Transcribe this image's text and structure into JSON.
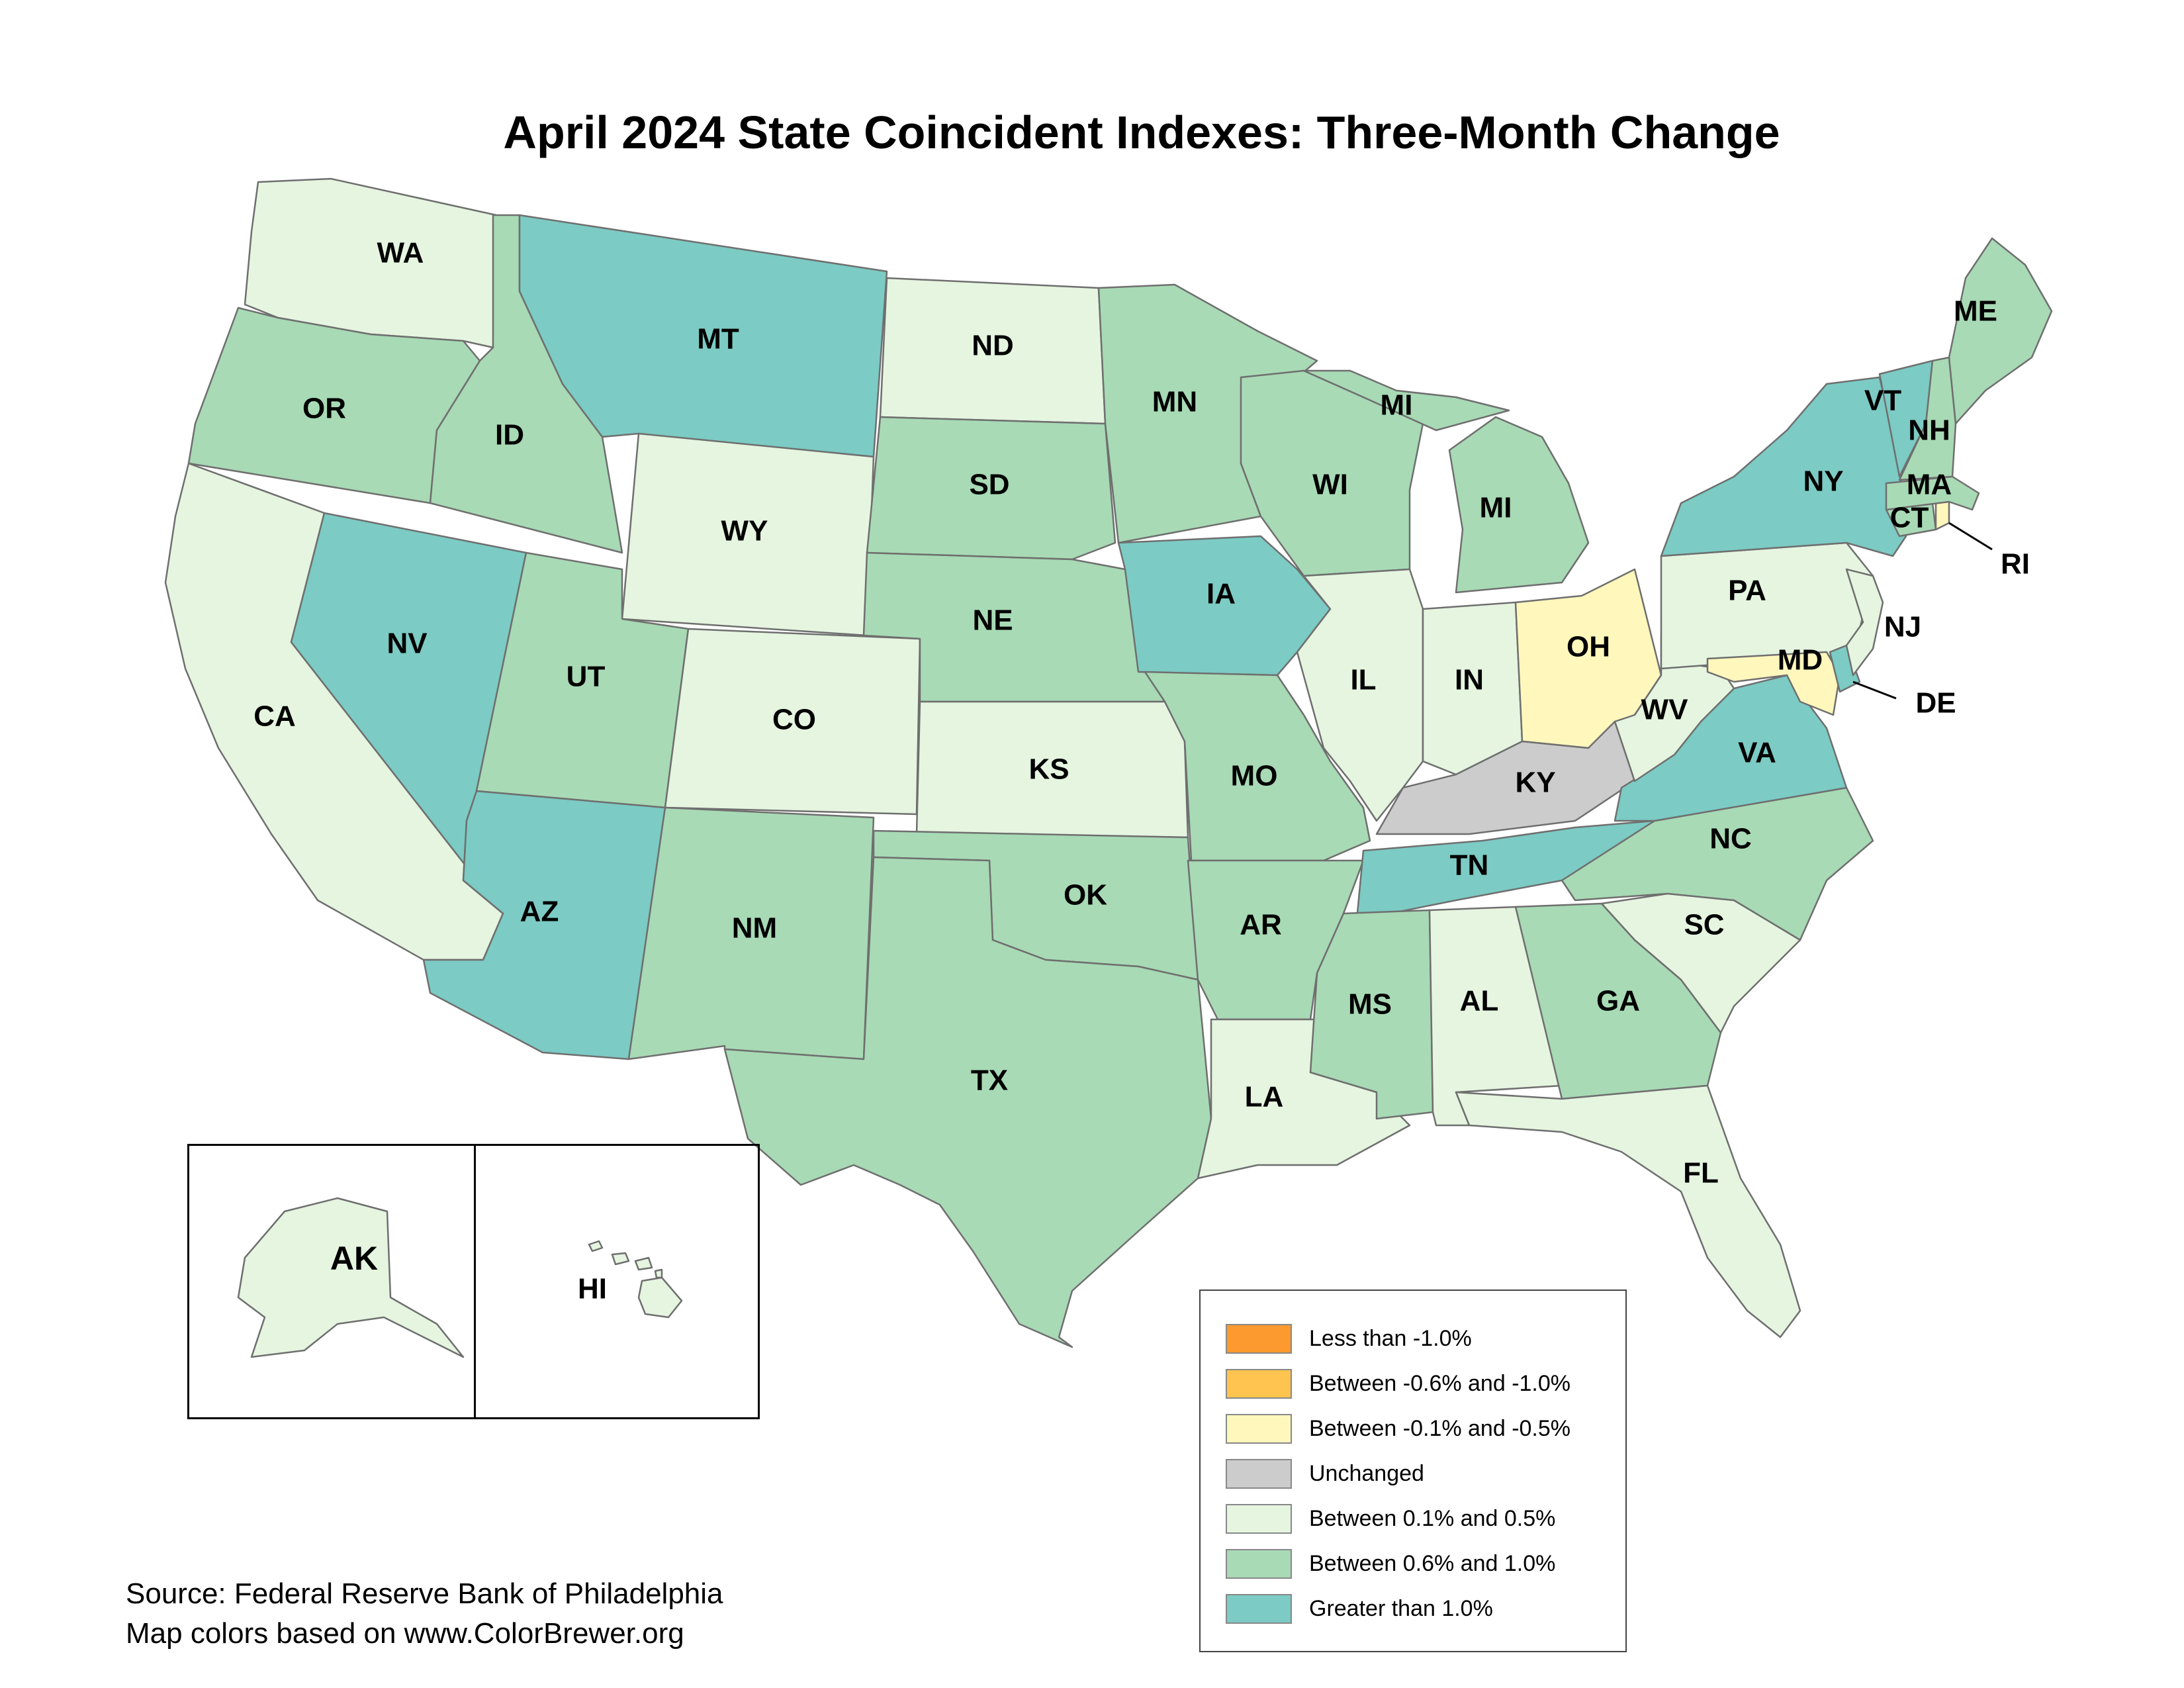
{
  "title": "April 2024 State Coincident Indexes: Three-Month Change",
  "colors": {
    "lt_neg1": "#fd9a2f",
    "neg06_neg10": "#fec44f",
    "neg01_neg05": "#fff7bc",
    "unchanged": "#cccccc",
    "p01_p05": "#e5f5e0",
    "p06_p10": "#a8dab5",
    "gt1": "#7ccbc4",
    "border": "#6f6f6f"
  },
  "legend": [
    {
      "label": "Less than -1.0%",
      "color": "#fd9a2f"
    },
    {
      "label": "Between -0.6% and -1.0%",
      "color": "#fec44f"
    },
    {
      "label": "Between -0.1% and -0.5%",
      "color": "#fff7bc"
    },
    {
      "label": "Unchanged",
      "color": "#cccccc"
    },
    {
      "label": "Between 0.1% and 0.5%",
      "color": "#e5f5e0"
    },
    {
      "label": "Between 0.6% and 1.0%",
      "color": "#a8dab5"
    },
    {
      "label": "Greater than 1.0%",
      "color": "#7ccbc4"
    }
  ],
  "states": {
    "WA": {
      "label": "WA",
      "category": "Between 0.1% and 0.5%"
    },
    "OR": {
      "label": "OR",
      "category": "Between 0.6% and 1.0%"
    },
    "CA": {
      "label": "CA",
      "category": "Between 0.1% and 0.5%"
    },
    "ID": {
      "label": "ID",
      "category": "Between 0.6% and 1.0%"
    },
    "NV": {
      "label": "NV",
      "category": "Greater than 1.0%"
    },
    "MT": {
      "label": "MT",
      "category": "Greater than 1.0%"
    },
    "WY": {
      "label": "WY",
      "category": "Between 0.1% and 0.5%"
    },
    "UT": {
      "label": "UT",
      "category": "Between 0.6% and 1.0%"
    },
    "AZ": {
      "label": "AZ",
      "category": "Greater than 1.0%"
    },
    "CO": {
      "label": "CO",
      "category": "Between 0.1% and 0.5%"
    },
    "NM": {
      "label": "NM",
      "category": "Between 0.6% and 1.0%"
    },
    "ND": {
      "label": "ND",
      "category": "Between 0.1% and 0.5%"
    },
    "SD": {
      "label": "SD",
      "category": "Between 0.6% and 1.0%"
    },
    "NE": {
      "label": "NE",
      "category": "Between 0.6% and 1.0%"
    },
    "KS": {
      "label": "KS",
      "category": "Between 0.1% and 0.5%"
    },
    "OK": {
      "label": "OK",
      "category": "Between 0.6% and 1.0%"
    },
    "TX": {
      "label": "TX",
      "category": "Between 0.6% and 1.0%"
    },
    "MN": {
      "label": "MN",
      "category": "Between 0.6% and 1.0%"
    },
    "IA": {
      "label": "IA",
      "category": "Greater than 1.0%"
    },
    "MO": {
      "label": "MO",
      "category": "Between 0.6% and 1.0%"
    },
    "AR": {
      "label": "AR",
      "category": "Between 0.6% and 1.0%"
    },
    "LA": {
      "label": "LA",
      "category": "Between 0.1% and 0.5%"
    },
    "WI": {
      "label": "WI",
      "category": "Between 0.6% and 1.0%"
    },
    "MI": {
      "label": "MI",
      "category": "Between 0.6% and 1.0%"
    },
    "MI_UP": {
      "label": "MI",
      "category": "Between 0.6% and 1.0%"
    },
    "IL": {
      "label": "IL",
      "category": "Between 0.1% and 0.5%"
    },
    "IN": {
      "label": "IN",
      "category": "Between 0.1% and 0.5%"
    },
    "OH": {
      "label": "OH",
      "category": "Between -0.1% and -0.5%"
    },
    "KY": {
      "label": "KY",
      "category": "Unchanged"
    },
    "TN": {
      "label": "TN",
      "category": "Greater than 1.0%"
    },
    "MS": {
      "label": "MS",
      "category": "Between 0.6% and 1.0%"
    },
    "AL": {
      "label": "AL",
      "category": "Between 0.1% and 0.5%"
    },
    "GA": {
      "label": "GA",
      "category": "Between 0.6% and 1.0%"
    },
    "FL": {
      "label": "FL",
      "category": "Between 0.1% and 0.5%"
    },
    "SC": {
      "label": "SC",
      "category": "Between 0.1% and 0.5%"
    },
    "NC": {
      "label": "NC",
      "category": "Between 0.6% and 1.0%"
    },
    "VA": {
      "label": "VA",
      "category": "Greater than 1.0%"
    },
    "WV": {
      "label": "WV",
      "category": "Between 0.1% and 0.5%"
    },
    "PA": {
      "label": "PA",
      "category": "Between 0.1% and 0.5%"
    },
    "NY": {
      "label": "NY",
      "category": "Greater than 1.0%"
    },
    "NJ": {
      "label": "NJ",
      "category": "Between 0.1% and 0.5%"
    },
    "DE": {
      "label": "DE",
      "category": "Greater than 1.0%"
    },
    "MD": {
      "label": "MD",
      "category": "Between -0.1% and -0.5%"
    },
    "CT": {
      "label": "CT",
      "category": "Between 0.6% and 1.0%"
    },
    "RI": {
      "label": "RI",
      "category": "Between -0.1% and -0.5%"
    },
    "MA": {
      "label": "MA",
      "category": "Between 0.6% and 1.0%"
    },
    "VT": {
      "label": "VT",
      "category": "Greater than 1.0%"
    },
    "NH": {
      "label": "NH",
      "category": "Between 0.6% and 1.0%"
    },
    "ME": {
      "label": "ME",
      "category": "Between 0.6% and 1.0%"
    },
    "AK": {
      "label": "AK",
      "category": "Between 0.1% and 0.5%"
    },
    "HI": {
      "label": "HI",
      "category": "Between 0.1% and 0.5%"
    }
  },
  "source": {
    "line1": "Source: Federal Reserve Bank of Philadelphia",
    "line2": "Map colors based on www.ColorBrewer.org"
  }
}
